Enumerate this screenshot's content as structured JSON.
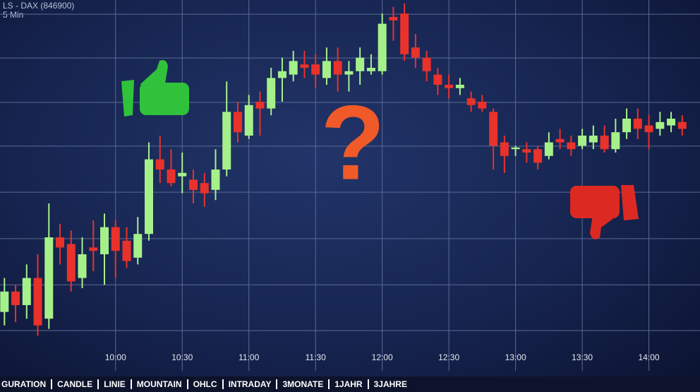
{
  "chart_data": {
    "type": "candlestick",
    "title": "LS - DAX (846900)",
    "subtitle": "5 Min",
    "annotation": "?",
    "x": [
      550,
      555,
      560,
      565,
      570,
      575,
      580,
      585,
      590,
      595,
      600,
      605,
      610,
      615,
      620,
      625,
      630,
      635,
      640,
      645,
      650,
      655,
      660,
      665,
      670,
      675,
      680,
      685,
      690,
      695,
      700,
      705,
      710,
      715,
      720,
      725,
      730,
      735,
      740,
      745,
      750,
      755,
      760,
      765,
      770,
      775,
      780,
      785,
      790,
      795,
      800,
      805,
      810,
      815,
      820,
      825,
      830,
      835,
      840,
      845,
      850,
      855
    ],
    "open": [
      8,
      14,
      10,
      18,
      6,
      30,
      28,
      18,
      27,
      25,
      33,
      29,
      24,
      31,
      53,
      50,
      48,
      47,
      46,
      44,
      50,
      67,
      60,
      70,
      68,
      77,
      78,
      81,
      81,
      77,
      82,
      78,
      79,
      79,
      79,
      95,
      96,
      86,
      83,
      78,
      75,
      74,
      71,
      70,
      67,
      58,
      56,
      56,
      56,
      54,
      59,
      58,
      57,
      58,
      60,
      56,
      61,
      65,
      63,
      62,
      63,
      64
    ],
    "high": [
      18,
      16,
      22,
      25,
      40,
      34,
      32,
      30,
      35,
      37,
      35,
      33,
      36,
      58,
      60,
      56,
      55,
      50,
      49,
      56,
      76,
      70,
      72,
      73,
      80,
      83,
      85,
      85,
      84,
      86,
      86,
      82,
      86,
      84,
      96,
      98,
      99,
      90,
      85,
      80,
      78,
      77,
      73,
      72,
      68,
      60,
      57,
      58,
      57,
      61,
      62,
      60,
      62,
      63,
      63,
      65,
      68,
      68,
      66,
      67,
      67,
      66
    ],
    "low": [
      4,
      5,
      6,
      1,
      3,
      22,
      14,
      15,
      20,
      16,
      18,
      21,
      22,
      29,
      46,
      45,
      43,
      40,
      39,
      41,
      48,
      58,
      59,
      60,
      66,
      70,
      76,
      77,
      74,
      75,
      73,
      73,
      75,
      78,
      78,
      88,
      82,
      80,
      76,
      72,
      71,
      72,
      67,
      67,
      50,
      49,
      54,
      52,
      50,
      53,
      56,
      54,
      56,
      56,
      55,
      55,
      59,
      59,
      56,
      60,
      61,
      60
    ],
    "close": [
      14,
      10,
      18,
      4,
      30,
      27,
      17,
      25,
      26,
      33,
      26,
      23,
      31,
      53,
      50,
      46,
      49,
      44,
      43,
      50,
      67,
      61,
      69,
      68,
      77,
      79,
      82,
      80,
      78,
      82,
      78,
      79,
      83,
      80,
      93,
      94,
      84,
      83,
      79,
      75,
      74,
      75,
      69,
      68,
      57,
      54,
      56.5,
      55,
      52,
      58,
      58,
      56,
      60,
      60,
      56,
      61,
      65,
      62,
      61,
      64,
      65,
      62
    ],
    "up_color": "#a6f08a",
    "down_color": "#e8322b",
    "grid_color": "#5a6a95",
    "xlim": [
      548,
      863
    ],
    "xticks": [
      {
        "value": 600,
        "label": "10:00"
      },
      {
        "value": 630,
        "label": "10:30"
      },
      {
        "value": 660,
        "label": "11:00"
      },
      {
        "value": 690,
        "label": "11:30"
      },
      {
        "value": 720,
        "label": "12:00"
      },
      {
        "value": 750,
        "label": "12:30"
      },
      {
        "value": 780,
        "label": "13:00"
      },
      {
        "value": 810,
        "label": "13:30"
      },
      {
        "value": 840,
        "label": "14:00"
      }
    ],
    "ylim": [
      0,
      100
    ],
    "yticks": [
      95.8,
      82.9,
      69.8,
      56.9,
      43.3,
      29.6,
      16,
      2.5
    ],
    "grid": true
  },
  "toolbar": {
    "items": [
      "GURATION",
      "CANDLE",
      "LINIE",
      "MOUNTAIN",
      "OHLC",
      "INTRADAY",
      "3MONATE",
      "1JAHR",
      "3JAHRE"
    ]
  }
}
